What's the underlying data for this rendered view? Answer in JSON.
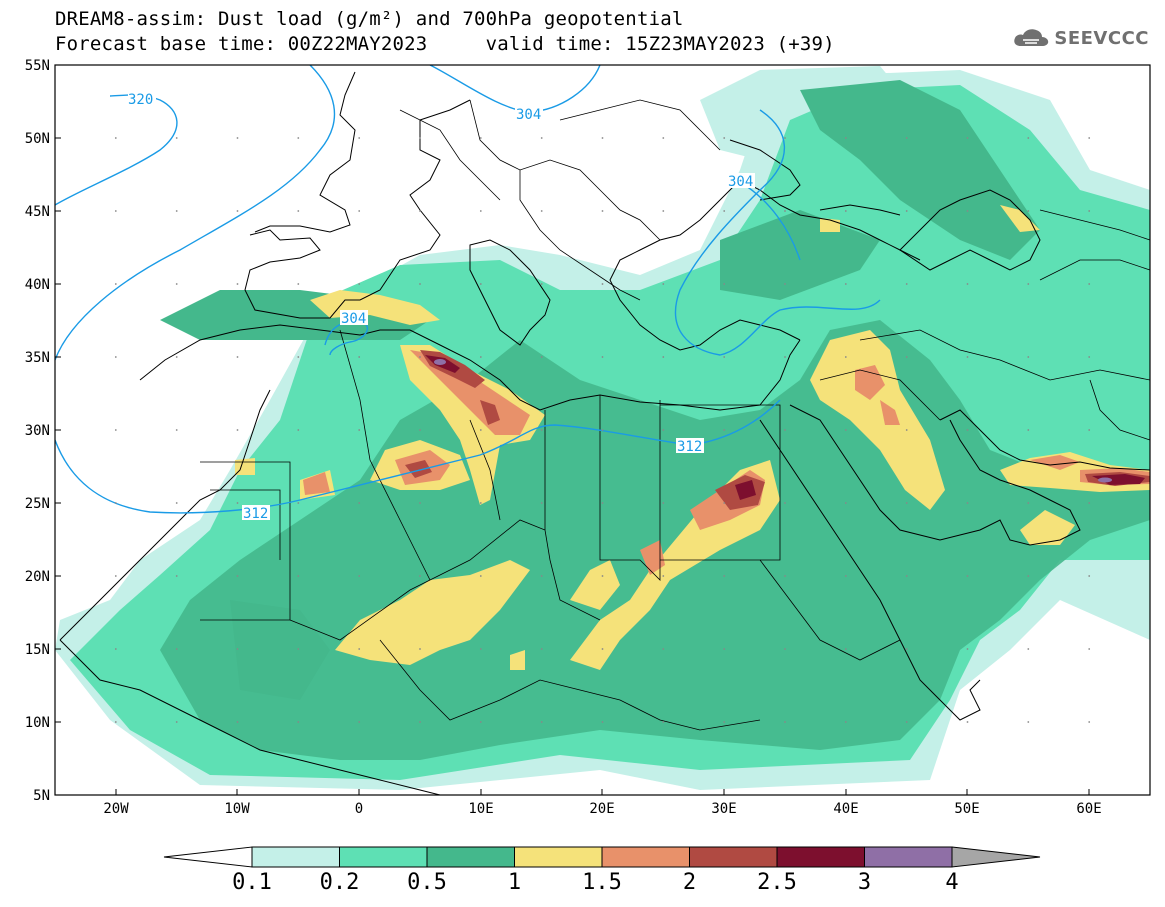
{
  "header": {
    "title_line1": "DREAM8-assim: Dust load (g/m²) and 700hPa geopotential",
    "title_line2": "Forecast base time: 00Z22MAY2023     valid time: 15Z23MAY2023 (+39)",
    "logo_text": "SEEVCCC"
  },
  "map": {
    "projection": "lat-lon",
    "lon_range": [
      -25,
      65
    ],
    "lat_range": [
      5,
      55
    ],
    "lat_ticks": [
      "5N",
      "10N",
      "15N",
      "20N",
      "25N",
      "30N",
      "35N",
      "40N",
      "45N",
      "50N",
      "55N"
    ],
    "lon_ticks": [
      "20W",
      "10W",
      "0",
      "10E",
      "20E",
      "30E",
      "40E",
      "50E",
      "60E"
    ],
    "contour_color": "#1a9be6",
    "contour_labels": [
      "320",
      "304",
      "304",
      "304",
      "312",
      "312"
    ]
  },
  "colorbar": {
    "labels": [
      "0.1",
      "0.2",
      "0.5",
      "1",
      "1.5",
      "2",
      "2.5",
      "3",
      "4"
    ],
    "colors": [
      "#c4f0e8",
      "#5ee0b4",
      "#44b88c",
      "#f5e27a",
      "#e8916a",
      "#b04a42",
      "#7d0f2e",
      "#8f6fa6",
      "#a6a6a6"
    ]
  }
}
